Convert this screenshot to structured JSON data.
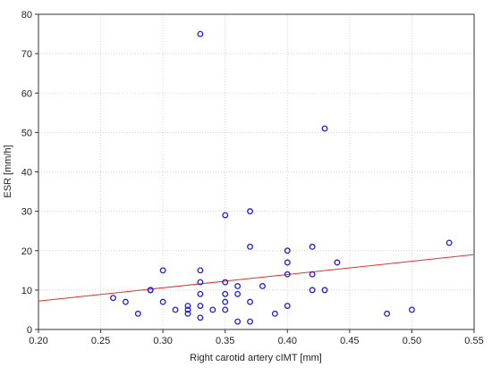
{
  "chart_data": {
    "type": "scatter",
    "title": "",
    "xlabel": "Right carotid artery cIMT [mm]",
    "ylabel": "ESR [mm/h]",
    "xlim": [
      0.2,
      0.55
    ],
    "ylim": [
      0,
      80
    ],
    "x_ticks": [
      "0.20",
      "0.25",
      "0.30",
      "0.35",
      "0.40",
      "0.45",
      "0.50",
      "0.55"
    ],
    "y_ticks": [
      "0",
      "10",
      "20",
      "30",
      "40",
      "50",
      "60",
      "70",
      "80"
    ],
    "grid": true,
    "series": [
      {
        "marker": "open-circle",
        "color": "#1f1fd6",
        "points": [
          [
            0.26,
            8
          ],
          [
            0.27,
            7
          ],
          [
            0.28,
            4
          ],
          [
            0.29,
            10
          ],
          [
            0.29,
            10
          ],
          [
            0.3,
            15
          ],
          [
            0.3,
            7
          ],
          [
            0.31,
            5
          ],
          [
            0.32,
            6
          ],
          [
            0.32,
            5
          ],
          [
            0.32,
            4
          ],
          [
            0.33,
            75
          ],
          [
            0.33,
            15
          ],
          [
            0.33,
            12
          ],
          [
            0.33,
            9
          ],
          [
            0.33,
            6
          ],
          [
            0.33,
            3
          ],
          [
            0.34,
            5
          ],
          [
            0.35,
            29
          ],
          [
            0.35,
            12
          ],
          [
            0.35,
            9
          ],
          [
            0.35,
            7
          ],
          [
            0.35,
            5
          ],
          [
            0.36,
            11
          ],
          [
            0.36,
            9
          ],
          [
            0.36,
            2
          ],
          [
            0.37,
            30
          ],
          [
            0.37,
            21
          ],
          [
            0.37,
            7
          ],
          [
            0.37,
            2
          ],
          [
            0.38,
            11
          ],
          [
            0.39,
            4
          ],
          [
            0.4,
            20
          ],
          [
            0.4,
            17
          ],
          [
            0.4,
            14
          ],
          [
            0.4,
            6
          ],
          [
            0.42,
            21
          ],
          [
            0.42,
            14
          ],
          [
            0.42,
            10
          ],
          [
            0.43,
            51
          ],
          [
            0.43,
            10
          ],
          [
            0.44,
            17
          ],
          [
            0.48,
            4
          ],
          [
            0.5,
            5
          ],
          [
            0.53,
            22
          ]
        ]
      }
    ],
    "trendline": {
      "type": "linear",
      "color": "#e03030",
      "start": [
        0.2,
        7.2
      ],
      "end": [
        0.55,
        19.0
      ]
    }
  }
}
